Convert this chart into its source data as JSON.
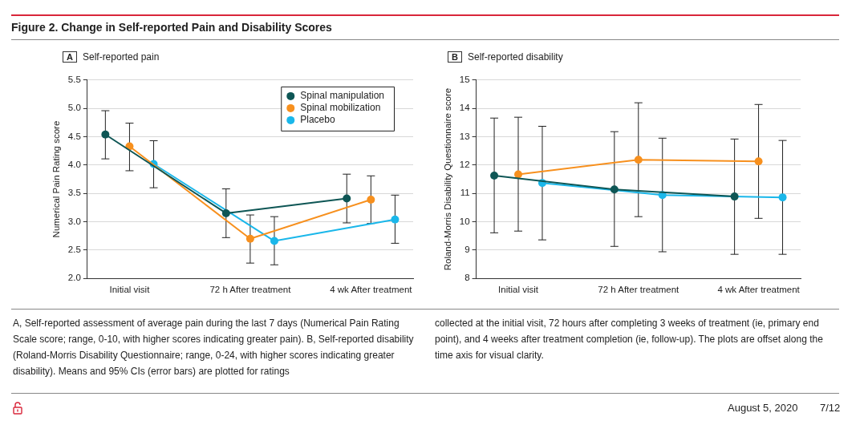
{
  "chart_data": [
    {
      "type": "line",
      "title": "Self-reported pain",
      "ylabel": "Numerical Pain Rating score",
      "categories": [
        "Initial visit",
        "72 h After treatment",
        "4 wk After treatment"
      ],
      "series": [
        {
          "name": "Spinal manipulation",
          "color": "#0e5655",
          "values": [
            4.54,
            3.15,
            3.41
          ],
          "errors": [
            [
              4.11,
              4.96
            ],
            [
              2.72,
              3.58
            ],
            [
              2.98,
              3.84
            ]
          ]
        },
        {
          "name": "Spinal mobilization",
          "color": "#f7901e",
          "values": [
            4.33,
            2.7,
            3.39
          ],
          "errors": [
            [
              3.9,
              4.74
            ],
            [
              2.27,
              3.12
            ],
            [
              2.97,
              3.81
            ]
          ]
        },
        {
          "name": "Placebo",
          "color": "#1ab7ea",
          "values": [
            4.02,
            2.66,
            3.04
          ],
          "errors": [
            [
              3.6,
              4.43
            ],
            [
              2.24,
              3.09
            ],
            [
              2.62,
              3.47
            ]
          ]
        }
      ],
      "ylim": [
        2.0,
        5.5
      ],
      "yticks": [
        {
          "value": 2,
          "label": "2.0"
        },
        2.5,
        {
          "value": 3,
          "label": "3.0"
        },
        3.5,
        {
          "value": 4,
          "label": "4.0"
        },
        4.5,
        {
          "value": 5,
          "label": "5.0"
        },
        5.5
      ],
      "grid": "y",
      "legend": "top right",
      "marker": "circle",
      "line_style": "solid",
      "annotations": [
        "Figure 2. Change in Self-reported Pain and Disability Scores",
        "A",
        "A, Self-reported assessment of average pain during the last 7 days (Numerical Pain Rating Scale score; range, 0-10, with higher scores indicating greater pain). B, Self-reported disability (Roland-Morris Disability Questionnaire; range, 0-24, with higher scores indicating greater disability). Means and 95% CIs (error bars) are plotted for ratings"
      ]
    },
    {
      "type": "line",
      "title": "Self-reported disability",
      "ylabel": "Roland-Morris Disability Questionnaire score",
      "categories": [
        "Initial visit",
        "72 h After treatment",
        "4 wk After treatment"
      ],
      "series": [
        {
          "color": "#0e5655",
          "values": [
            11.63,
            11.14,
            10.89
          ],
          "errors": [
            [
              9.61,
              13.66
            ],
            [
              9.13,
              13.18
            ],
            [
              8.85,
              12.92
            ]
          ]
        },
        {
          "color": "#f7901e",
          "values": [
            11.67,
            12.19,
            12.13
          ],
          "errors": [
            [
              9.67,
              13.69
            ],
            [
              10.18,
              14.2
            ],
            [
              10.12,
              14.14
            ]
          ]
        },
        {
          "color": "#1ab7ea",
          "values": [
            11.37,
            10.94,
            10.86
          ],
          "errors": [
            [
              9.36,
              13.37
            ],
            [
              8.94,
              12.95
            ],
            [
              8.85,
              12.87
            ]
          ]
        }
      ],
      "ylim": [
        8,
        15
      ],
      "yticks": [
        8,
        9,
        10,
        11,
        12,
        13,
        14,
        15
      ],
      "grid": "y",
      "marker": "circle",
      "line_style": "solid",
      "annotations": [
        "B",
        "collected at the initial visit, 72 hours after completing 3 weeks of treatment (ie, primary end point), and 4 weeks after treatment completion (ie, follow-up). The plots are offset along the time axis for visual clarity.",
        "August 5, 2020",
        "7/12"
      ]
    }
  ]
}
